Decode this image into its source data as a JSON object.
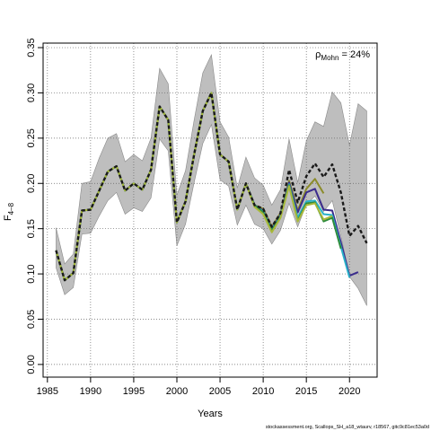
{
  "chart_data": {
    "type": "line",
    "xlabel": "Years",
    "ylabel_main": "F",
    "ylabel_sub": "4–8",
    "xlim": [
      1984.5,
      2023.2
    ],
    "ylim": [
      -0.014,
      0.355
    ],
    "xticks": [
      1985,
      1990,
      1995,
      2000,
      2005,
      2010,
      2015,
      2020
    ],
    "yticks": [
      0.0,
      0.05,
      0.1,
      0.15,
      0.2,
      0.25,
      0.3,
      0.35
    ],
    "ytick_labels": [
      "0.00",
      "0.05",
      "0.10",
      "0.15",
      "0.20",
      "0.25",
      "0.30",
      "0.35"
    ],
    "grid": true,
    "annotation": {
      "main": "ρ",
      "sub": "Mohn",
      "rest": " = 24%"
    },
    "footer": "stockassessment.org, Scallops_SH_a18_wtaurv, r18567, gitc9c81ec53a0d",
    "band": {
      "x": [
        1986,
        1987,
        1988,
        1989,
        1990,
        1991,
        1992,
        1993,
        1994,
        1995,
        1996,
        1997,
        1998,
        1999,
        2000,
        2001,
        2002,
        2003,
        2004,
        2005,
        2006,
        2007,
        2008,
        2009,
        2010,
        2011,
        2012,
        2013,
        2014,
        2015,
        2016,
        2017,
        2018,
        2019,
        2020,
        2021,
        2022
      ],
      "upper": [
        0.151,
        0.111,
        0.122,
        0.2,
        0.202,
        0.228,
        0.25,
        0.255,
        0.224,
        0.232,
        0.225,
        0.25,
        0.327,
        0.31,
        0.187,
        0.214,
        0.27,
        0.322,
        0.342,
        0.268,
        0.251,
        0.195,
        0.229,
        0.206,
        0.198,
        0.176,
        0.193,
        0.249,
        0.201,
        0.247,
        0.268,
        0.263,
        0.301,
        0.289,
        0.242,
        0.288,
        0.28
      ],
      "lower": [
        0.107,
        0.077,
        0.085,
        0.144,
        0.145,
        0.164,
        0.181,
        0.19,
        0.166,
        0.173,
        0.169,
        0.184,
        0.249,
        0.236,
        0.131,
        0.155,
        0.201,
        0.244,
        0.265,
        0.204,
        0.197,
        0.154,
        0.176,
        0.155,
        0.15,
        0.133,
        0.148,
        0.178,
        0.152,
        0.177,
        0.186,
        0.169,
        0.181,
        0.142,
        0.097,
        0.084,
        0.065
      ]
    },
    "series": [
      {
        "color": "#1a1a1a",
        "dashed": true,
        "x": [
          1986,
          1987,
          1988,
          1989,
          1990,
          1991,
          1992,
          1993,
          1994,
          1995,
          1996,
          1997,
          1998,
          1999,
          2000,
          2001,
          2002,
          2003,
          2004,
          2005,
          2006,
          2007,
          2008,
          2009,
          2010,
          2011,
          2012,
          2013,
          2014,
          2015,
          2016,
          2017,
          2018,
          2019,
          2020,
          2021,
          2022
        ],
        "values": [
          0.126,
          0.093,
          0.101,
          0.17,
          0.171,
          0.192,
          0.213,
          0.219,
          0.192,
          0.2,
          0.193,
          0.215,
          0.285,
          0.27,
          0.157,
          0.18,
          0.232,
          0.28,
          0.3,
          0.232,
          0.224,
          0.171,
          0.2,
          0.176,
          0.172,
          0.152,
          0.167,
          0.215,
          0.179,
          0.208,
          0.222,
          0.207,
          0.221,
          0.19,
          0.142,
          0.153,
          0.134
        ]
      },
      {
        "color": "#8b8b2a",
        "dashed": false,
        "x": [
          1986,
          1987,
          1988,
          1989,
          1990,
          1991,
          1992,
          1993,
          1994,
          1995,
          1996,
          1997,
          1998,
          1999,
          2000,
          2001,
          2002,
          2003,
          2004,
          2005,
          2006,
          2007,
          2008,
          2009,
          2010,
          2011,
          2012,
          2013,
          2014,
          2015,
          2016,
          2017
        ],
        "values": [
          0.126,
          0.093,
          0.101,
          0.17,
          0.171,
          0.192,
          0.213,
          0.219,
          0.192,
          0.2,
          0.193,
          0.215,
          0.285,
          0.27,
          0.157,
          0.18,
          0.232,
          0.28,
          0.3,
          0.232,
          0.224,
          0.171,
          0.2,
          0.176,
          0.172,
          0.152,
          0.167,
          0.203,
          0.17,
          0.194,
          0.205,
          0.189
        ]
      },
      {
        "color": "#3b2c8c",
        "dashed": false,
        "x": [
          1986,
          1987,
          1988,
          1989,
          1990,
          1991,
          1992,
          1993,
          1994,
          1995,
          1996,
          1997,
          1998,
          1999,
          2000,
          2001,
          2002,
          2003,
          2004,
          2005,
          2006,
          2007,
          2008,
          2009,
          2010,
          2011,
          2012,
          2013,
          2014,
          2015,
          2016,
          2017,
          2018,
          2019,
          2020,
          2021
        ],
        "values": [
          0.126,
          0.093,
          0.101,
          0.17,
          0.171,
          0.192,
          0.213,
          0.219,
          0.192,
          0.2,
          0.193,
          0.215,
          0.285,
          0.27,
          0.157,
          0.18,
          0.232,
          0.28,
          0.3,
          0.232,
          0.224,
          0.171,
          0.2,
          0.176,
          0.17,
          0.15,
          0.165,
          0.201,
          0.168,
          0.19,
          0.194,
          0.171,
          0.17,
          0.135,
          0.098,
          0.102
        ]
      },
      {
        "color": "#2ab0c8",
        "dashed": false,
        "x": [
          1986,
          1987,
          1988,
          1989,
          1990,
          1991,
          1992,
          1993,
          1994,
          1995,
          1996,
          1997,
          1998,
          1999,
          2000,
          2001,
          2002,
          2003,
          2004,
          2005,
          2006,
          2007,
          2008,
          2009,
          2010,
          2011,
          2012,
          2013,
          2014,
          2015,
          2016,
          2017,
          2018,
          2019,
          2020
        ],
        "values": [
          0.126,
          0.093,
          0.101,
          0.17,
          0.171,
          0.192,
          0.213,
          0.219,
          0.192,
          0.2,
          0.193,
          0.215,
          0.285,
          0.27,
          0.157,
          0.18,
          0.232,
          0.28,
          0.3,
          0.232,
          0.224,
          0.171,
          0.2,
          0.176,
          0.169,
          0.149,
          0.164,
          0.199,
          0.162,
          0.18,
          0.181,
          0.166,
          0.165,
          0.13,
          0.096
        ]
      },
      {
        "color": "#2e8b3c",
        "dashed": false,
        "x": [
          1986,
          1987,
          1988,
          1989,
          1990,
          1991,
          1992,
          1993,
          1994,
          1995,
          1996,
          1997,
          1998,
          1999,
          2000,
          2001,
          2002,
          2003,
          2004,
          2005,
          2006,
          2007,
          2008,
          2009,
          2010,
          2011,
          2012,
          2013,
          2014,
          2015,
          2016,
          2017,
          2018,
          2019
        ],
        "values": [
          0.126,
          0.093,
          0.101,
          0.17,
          0.171,
          0.192,
          0.213,
          0.219,
          0.192,
          0.2,
          0.193,
          0.215,
          0.285,
          0.27,
          0.157,
          0.18,
          0.232,
          0.28,
          0.3,
          0.232,
          0.224,
          0.171,
          0.2,
          0.176,
          0.168,
          0.148,
          0.163,
          0.198,
          0.159,
          0.178,
          0.179,
          0.158,
          0.162,
          0.128
        ]
      },
      {
        "color": "#a8b83a",
        "dashed": false,
        "x": [
          1986,
          1987,
          1988,
          1989,
          1990,
          1991,
          1992,
          1993,
          1994,
          1995,
          1996,
          1997,
          1998,
          1999,
          2000,
          2001,
          2002,
          2003,
          2004,
          2005,
          2006,
          2007,
          2008,
          2009,
          2010,
          2011,
          2012,
          2013,
          2014,
          2015,
          2016,
          2017,
          2018
        ],
        "values": [
          0.126,
          0.093,
          0.101,
          0.17,
          0.171,
          0.192,
          0.213,
          0.219,
          0.192,
          0.2,
          0.193,
          0.215,
          0.285,
          0.27,
          0.157,
          0.18,
          0.232,
          0.28,
          0.3,
          0.232,
          0.224,
          0.171,
          0.2,
          0.174,
          0.166,
          0.146,
          0.162,
          0.197,
          0.158,
          0.176,
          0.178,
          0.16,
          0.164
        ]
      }
    ]
  }
}
